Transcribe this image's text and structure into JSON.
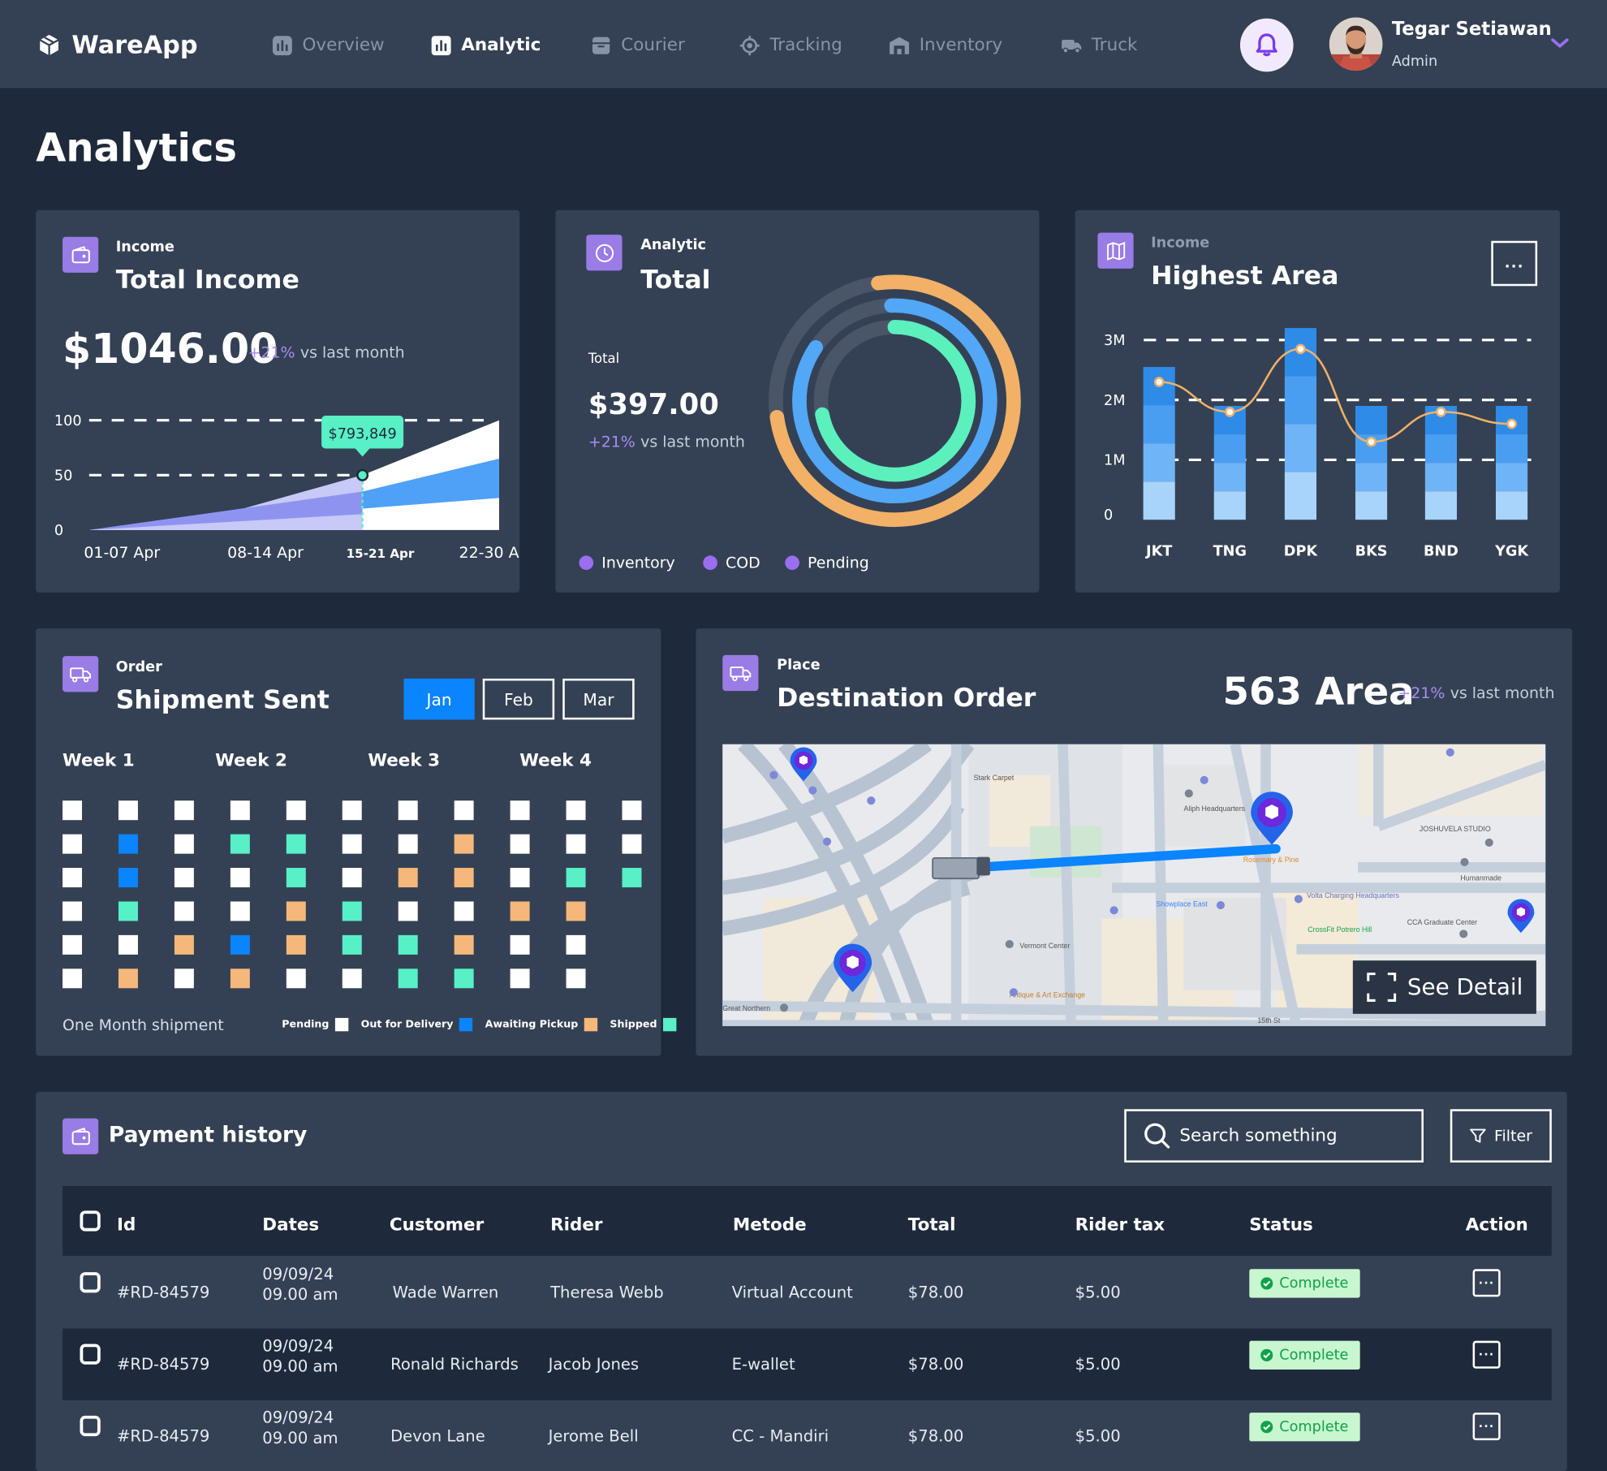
{
  "app": {
    "name": "WareApp"
  },
  "nav": {
    "items": [
      {
        "label": "Overview",
        "icon": "bar-chart-icon",
        "active": false
      },
      {
        "label": "Analytic",
        "icon": "analytics-icon",
        "active": true
      },
      {
        "label": "Courier",
        "icon": "box-icon",
        "active": false
      },
      {
        "label": "Tracking",
        "icon": "target-icon",
        "active": false
      },
      {
        "label": "Inventory",
        "icon": "warehouse-icon",
        "active": false
      },
      {
        "label": "Truck",
        "icon": "truck-icon",
        "active": false
      }
    ]
  },
  "user": {
    "name": "Tegar Setiawan",
    "role": "Admin"
  },
  "page": {
    "title": "Analytics"
  },
  "income_card": {
    "label": "Income",
    "title": "Total Income",
    "amount": "$1046.00",
    "change": "+21%",
    "change_text": "vs last month",
    "tooltip": "$793,849"
  },
  "analytic_card": {
    "label": "Analytic",
    "title": "Total",
    "total_label": "Total",
    "amount": "$397.00",
    "change": "+21%",
    "change_text": "vs last month",
    "legend": [
      "Inventory",
      "COD",
      "Pending"
    ]
  },
  "area_card": {
    "label": "Income",
    "title": "Highest Area",
    "more": "..."
  },
  "shipment_card": {
    "label": "Order",
    "title": "Shipment Sent",
    "months": [
      "Jan",
      "Feb",
      "Mar"
    ],
    "weeks": [
      "Week 1",
      "Week 2",
      "Week 3",
      "Week 4"
    ],
    "footer": "One Month shipment",
    "legend": [
      "Pending",
      "Out for Delivery",
      "Awaiting Pickup",
      "Shipped"
    ]
  },
  "destination_card": {
    "label": "Place",
    "title": "Destination Order",
    "area": "563 Area",
    "change": "+21%",
    "change_text": "vs last month",
    "see_detail": "See Detail"
  },
  "payment": {
    "title": "Payment history",
    "search_placeholder": "Search something",
    "filter": "Filter",
    "headers": [
      "Id",
      "Dates",
      "Customer",
      "Rider",
      "Metode",
      "Total",
      "Rider tax",
      "Status",
      "Action"
    ],
    "rows": [
      {
        "id": "#RD-84579",
        "date": "09/09/24",
        "time": "09.00 am",
        "customer": "Wade Warren",
        "rider": "Theresa Webb",
        "method": "Virtual Account",
        "total": "$78.00",
        "tax": "$5.00",
        "status": "Complete"
      },
      {
        "id": "#RD-84579",
        "date": "09/09/24",
        "time": "09.00 am",
        "customer": "Ronald Richards",
        "rider": "Jacob Jones",
        "method": "E-wallet",
        "total": "$78.00",
        "tax": "$5.00",
        "status": "Complete"
      },
      {
        "id": "#RD-84579",
        "date": "09/09/24",
        "time": "09.00 am",
        "customer": "Devon Lane",
        "rider": "Jerome Bell",
        "method": "CC - Mandiri",
        "total": "$78.00",
        "tax": "$5.00",
        "status": "Complete"
      }
    ]
  },
  "map": {
    "labels": [
      "Stark Carpet",
      "Aliph Headquarters",
      "JOSHUVELA STUDIO",
      "Rosemary & Pine",
      "Humanmade",
      "Showplace East",
      "Volta Charging Headquarters",
      "CrossFit Potrero Hill",
      "CCA Graduate Center",
      "Vermont Center",
      "Antique & Art Exchange",
      "Great Northern",
      "15th St"
    ]
  },
  "chart_data": [
    {
      "type": "area",
      "title": "Total Income",
      "categories": [
        "01-07 Apr",
        "08-14 Apr",
        "15-21 Apr",
        "22-30 Apr"
      ],
      "yticks": [
        0,
        50,
        100
      ],
      "ylim": [
        0,
        100
      ],
      "highlight": {
        "category": "15-21 Apr",
        "label": "$793,849"
      },
      "series": [
        {
          "name": "",
          "values": [
            0,
            15,
            50,
            100
          ]
        },
        {
          "name": "",
          "values": [
            0,
            10,
            35,
            65
          ]
        }
      ]
    },
    {
      "type": "pie",
      "title": "Total",
      "series": [
        {
          "name": "Inventory",
          "value": 0.75,
          "color": "#f2b166"
        },
        {
          "name": "COD",
          "value": 0.85,
          "color": "#52a7f7"
        },
        {
          "name": "Pending",
          "value": 0.72,
          "color": "#5cf0bd"
        }
      ]
    },
    {
      "type": "bar",
      "title": "Highest Area",
      "categories": [
        "JKT",
        "TNG",
        "DPK",
        "BKS",
        "BND",
        "YGK"
      ],
      "yticks": [
        "0",
        "1M",
        "2M",
        "3M"
      ],
      "ylim": [
        0,
        3200000
      ],
      "values": [
        2550000,
        1900000,
        3200000,
        1900000,
        1900000,
        1900000
      ],
      "line": [
        2300000,
        1800000,
        2850000,
        1300000,
        1800000,
        1600000
      ]
    },
    {
      "type": "heatmap",
      "title": "Shipment Sent",
      "categories": [
        "Pending",
        "Out for Delivery",
        "Awaiting Pickup",
        "Shipped"
      ],
      "colors": [
        "#ffffff",
        "#0a84ff",
        "#f5b77a",
        "#58f0c5"
      ],
      "grid": [
        [
          0,
          0,
          0,
          0,
          0,
          0,
          0,
          0,
          0,
          0,
          0
        ],
        [
          0,
          1,
          0,
          3,
          3,
          0,
          0,
          2,
          0,
          0,
          0
        ],
        [
          0,
          1,
          0,
          0,
          3,
          0,
          2,
          2,
          0,
          3,
          3
        ],
        [
          0,
          3,
          0,
          0,
          2,
          3,
          0,
          0,
          2,
          2,
          -1
        ],
        [
          0,
          0,
          2,
          1,
          2,
          3,
          3,
          2,
          0,
          0,
          -1
        ],
        [
          0,
          2,
          0,
          2,
          0,
          0,
          3,
          3,
          0,
          0,
          -1
        ]
      ]
    }
  ]
}
